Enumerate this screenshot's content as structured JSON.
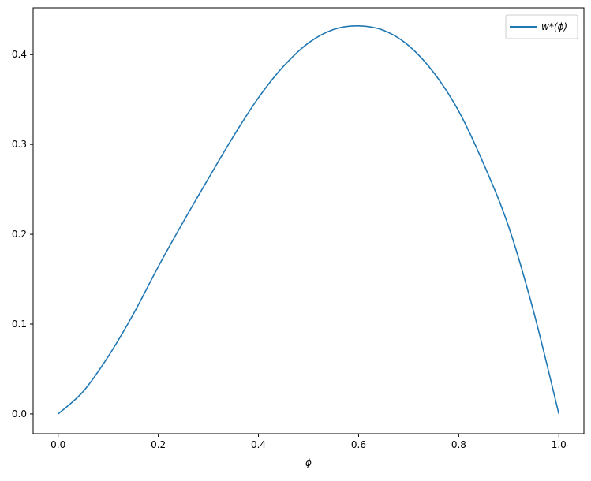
{
  "chart_data": {
    "type": "line",
    "title": "",
    "xlabel": "ϕ",
    "ylabel": "",
    "xlim": [
      -0.05,
      1.05
    ],
    "ylim": [
      -0.022,
      0.452
    ],
    "xticks": [
      "0.0",
      "0.2",
      "0.4",
      "0.6",
      "0.8",
      "1.0"
    ],
    "yticks": [
      "0.0",
      "0.1",
      "0.2",
      "0.3",
      "0.4"
    ],
    "grid": false,
    "legend_placement": "top-right",
    "series": [
      {
        "name": "w*(ϕ)",
        "color": "#1f77b4",
        "x": [
          0.0,
          0.05,
          0.1,
          0.15,
          0.2,
          0.25,
          0.3,
          0.35,
          0.4,
          0.45,
          0.5,
          0.55,
          0.6,
          0.65,
          0.7,
          0.75,
          0.8,
          0.85,
          0.9,
          0.95,
          1.0
        ],
        "y": [
          0.0,
          0.025,
          0.064,
          0.111,
          0.164,
          0.214,
          0.262,
          0.309,
          0.352,
          0.387,
          0.413,
          0.428,
          0.432,
          0.427,
          0.41,
          0.38,
          0.337,
          0.278,
          0.208,
          0.113,
          0.0
        ]
      }
    ]
  }
}
